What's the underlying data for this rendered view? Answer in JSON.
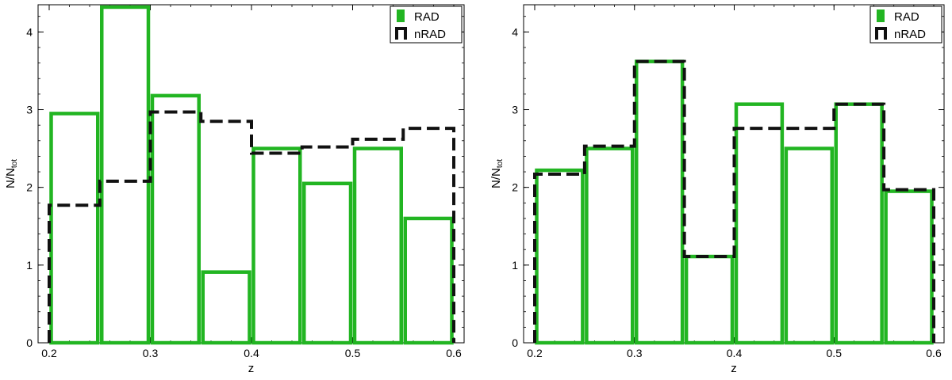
{
  "figure": {
    "colors": {
      "rad": "#22b522",
      "nrad": "#111111",
      "axis": "#000000"
    }
  },
  "chart_data": [
    {
      "type": "bar",
      "panel": "left",
      "xlabel": "z",
      "ylabel_main": "N/N",
      "ylabel_sub": "tot",
      "xlim": [
        0.2,
        0.6
      ],
      "ylim": [
        0,
        4.35
      ],
      "xticks": [
        "0.2",
        "0.3",
        "0.4",
        "0.5",
        "0.6"
      ],
      "xtick_values": [
        0.2,
        0.3,
        0.4,
        0.5,
        0.6
      ],
      "yticks": [
        "0",
        "1",
        "2",
        "3",
        "4"
      ],
      "ytick_values": [
        0,
        1,
        2,
        3,
        4
      ],
      "legend_position": "top-right",
      "series": [
        {
          "name": "RAD",
          "style": "open bars",
          "bin_edges": [
            0.2,
            0.25,
            0.3,
            0.35,
            0.4,
            0.45,
            0.5,
            0.55,
            0.6
          ],
          "values": [
            2.95,
            4.32,
            3.18,
            0.91,
            2.5,
            2.05,
            2.5,
            1.6
          ]
        },
        {
          "name": "nRAD",
          "style": "dashed step",
          "bin_edges": [
            0.2,
            0.25,
            0.3,
            0.35,
            0.4,
            0.45,
            0.5,
            0.55,
            0.6
          ],
          "values": [
            1.77,
            2.08,
            2.97,
            2.85,
            2.44,
            2.52,
            2.62,
            2.76
          ]
        }
      ]
    },
    {
      "type": "bar",
      "panel": "right",
      "xlabel": "z",
      "ylabel_main": "N/N",
      "ylabel_sub": "tot",
      "xlim": [
        0.2,
        0.6
      ],
      "ylim": [
        0,
        4.35
      ],
      "xticks": [
        "0.2",
        "0.3",
        "0.4",
        "0.5",
        "0.6"
      ],
      "xtick_values": [
        0.2,
        0.3,
        0.4,
        0.5,
        0.6
      ],
      "yticks": [
        "0",
        "1",
        "2",
        "3",
        "4"
      ],
      "ytick_values": [
        0,
        1,
        2,
        3,
        4
      ],
      "legend_position": "top-right",
      "series": [
        {
          "name": "RAD",
          "style": "open bars",
          "bin_edges": [
            0.2,
            0.25,
            0.3,
            0.35,
            0.4,
            0.45,
            0.5,
            0.55,
            0.6
          ],
          "values": [
            2.22,
            2.5,
            3.62,
            1.11,
            3.07,
            2.5,
            3.07,
            1.95
          ]
        },
        {
          "name": "nRAD",
          "style": "dashed step",
          "bin_edges": [
            0.2,
            0.25,
            0.3,
            0.35,
            0.4,
            0.45,
            0.5,
            0.55,
            0.6
          ],
          "values": [
            2.17,
            2.53,
            3.62,
            1.11,
            2.76,
            2.76,
            3.07,
            1.97
          ]
        }
      ]
    }
  ]
}
